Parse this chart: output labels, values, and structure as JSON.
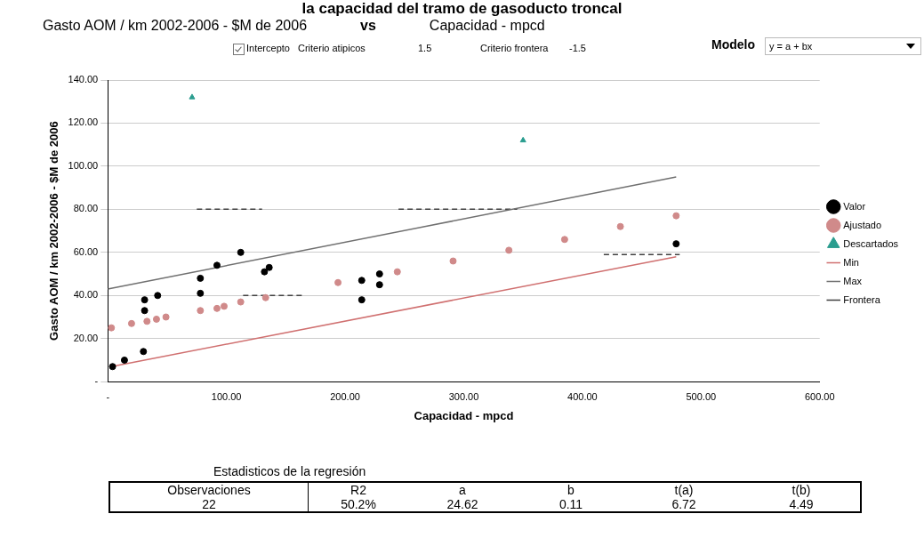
{
  "chart_data": {
    "type": "scatter",
    "title": "la capacidad del tramo de gasoducto troncal",
    "subtitle": "Gasto AOM / km 2002-2006 - $M de 2006 vs Capacidad - mpcd",
    "xlabel": "Capacidad - mpcd",
    "ylabel": "Gasto AOM / km 2002-2006 - $M de 2006",
    "series": [
      {
        "name": "Valor",
        "color": "#000000",
        "marker": "circle",
        "x": [
          4,
          14,
          30,
          31,
          31,
          42,
          78,
          78,
          92,
          112,
          132,
          136,
          214,
          214,
          229,
          229,
          479
        ],
        "values": [
          7,
          10,
          14,
          33,
          38,
          40,
          41,
          48,
          54,
          60,
          51,
          53,
          38,
          47,
          50,
          45,
          64
        ]
      },
      {
        "name": "Ajustado",
        "color": "#d08a8a",
        "marker": "circle",
        "x": [
          3,
          20,
          33,
          41,
          49,
          78,
          92,
          98,
          112,
          133,
          194,
          244,
          291,
          338,
          385,
          432,
          479
        ],
        "values": [
          25,
          27,
          28,
          29,
          30,
          33,
          34,
          35,
          37,
          39,
          46,
          51,
          56,
          61,
          66,
          72,
          77
        ]
      },
      {
        "name": "Descartados",
        "color": "#2a9d8f",
        "marker": "triangle",
        "x": [
          71,
          350
        ],
        "values": [
          132,
          112
        ]
      },
      {
        "name": "Min",
        "color": "#d07070",
        "type": "line",
        "marker": "none",
        "x": [
          3,
          479
        ],
        "values": [
          7,
          58
        ]
      },
      {
        "name": "Max",
        "color": "#707070",
        "type": "line",
        "marker": "none",
        "x": [
          0,
          479
        ],
        "values": [
          43,
          95
        ]
      },
      {
        "name": "Frontera",
        "color": "#404040",
        "type": "line",
        "marker": "none",
        "line_style": "dashed",
        "x": [
          75,
          130,
          null,
          114,
          164,
          null,
          245,
          345,
          null,
          418,
          482
        ],
        "values": [
          80,
          80,
          null,
          40,
          40,
          null,
          80,
          80,
          null,
          59,
          59
        ]
      }
    ],
    "xlim": [
      0,
      600
    ],
    "xticks": [
      {
        "value": 0,
        "label": "-"
      },
      {
        "value": 100,
        "label": "100.00"
      },
      {
        "value": 200,
        "label": "200.00"
      },
      {
        "value": 300,
        "label": "300.00"
      },
      {
        "value": 400,
        "label": "400.00"
      },
      {
        "value": 500,
        "label": "500.00"
      },
      {
        "value": 600,
        "label": "600.00"
      }
    ],
    "ylim": [
      0,
      140
    ],
    "yticks": [
      {
        "value": 0,
        "label": "-"
      },
      {
        "value": 20,
        "label": "20.00"
      },
      {
        "value": 40,
        "label": "40.00"
      },
      {
        "value": 60,
        "label": "60.00"
      },
      {
        "value": 80,
        "label": "80.00"
      },
      {
        "value": 100,
        "label": "100.00"
      },
      {
        "value": 120,
        "label": "120.00"
      },
      {
        "value": 140,
        "label": "140.00"
      }
    ],
    "grid": "y",
    "legend": "right",
    "annotations": [
      "Intercepto",
      "Criterio atipicos",
      "1.5",
      "Criterio frontera",
      "-1.5",
      "Modelo",
      "y = a + bx",
      "Estadisticos de la regresión",
      "Observaciones",
      "22",
      "R2",
      "50.2%",
      "a",
      "24.62",
      "b",
      "0.11",
      "t(a)",
      "6.72",
      "t(b)",
      "4.49"
    ]
  }
}
